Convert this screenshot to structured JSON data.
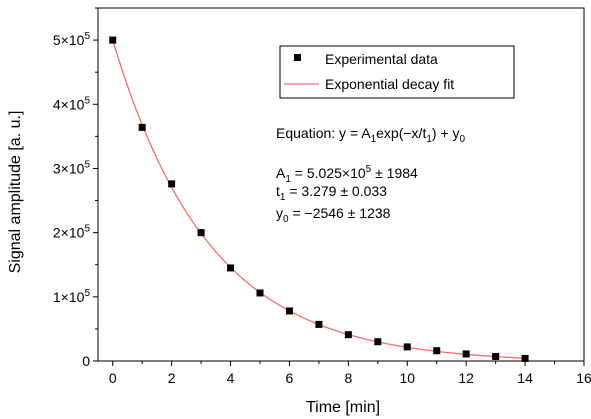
{
  "chart_data": {
    "type": "scatter",
    "xlabel": "Time [min]",
    "ylabel": "Signal amplitude [a. u.]",
    "xlim": [
      -0.5,
      16
    ],
    "ylim": [
      0,
      550000
    ],
    "x_ticks": [
      0,
      2,
      4,
      6,
      8,
      10,
      12,
      14,
      16
    ],
    "x_tick_labels": [
      "0",
      "2",
      "4",
      "6",
      "8",
      "10",
      "12",
      "14",
      "16"
    ],
    "y_ticks": [
      0,
      100000,
      200000,
      300000,
      400000,
      500000
    ],
    "y_tick_labels": [
      {
        "base": "0",
        "exp": ""
      },
      {
        "base": "1×10",
        "exp": "5"
      },
      {
        "base": "2×10",
        "exp": "5"
      },
      {
        "base": "3×10",
        "exp": "5"
      },
      {
        "base": "4×10",
        "exp": "5"
      },
      {
        "base": "5×10",
        "exp": "5"
      }
    ],
    "grid": false,
    "legend_position": "top-right",
    "series": [
      {
        "name": "Experimental data",
        "kind": "scatter",
        "color": "#000000",
        "x": [
          0,
          1,
          2,
          3,
          4,
          5,
          6,
          7,
          8,
          9,
          10,
          11,
          12,
          13,
          14
        ],
        "y": [
          500000,
          364000,
          276000,
          200000,
          145000,
          106000,
          78000,
          57000,
          41000,
          30000,
          22000,
          16000,
          11000,
          7000,
          4000
        ]
      },
      {
        "name": "Exponential decay fit",
        "kind": "line",
        "color": "#f07070",
        "model": {
          "A1": 502500,
          "t1": 3.279,
          "y0": -2546
        },
        "x_range": [
          0,
          14
        ]
      }
    ],
    "annotations": {
      "equation": {
        "a": "Equation: y = A",
        "b": "1",
        "c": "exp(−x/t",
        "d": "1",
        "e": ") + y",
        "f": "0"
      },
      "a1": {
        "a": "A",
        "b": "1",
        "c": " = 5.025×10",
        "d": "5",
        "e": " ± 1984"
      },
      "t1": {
        "a": "t",
        "b": "1",
        "c": " = 3.279 ± 0.033"
      },
      "y0": {
        "a": "y",
        "b": "0",
        "c": " = −2546 ± 1238"
      }
    }
  }
}
